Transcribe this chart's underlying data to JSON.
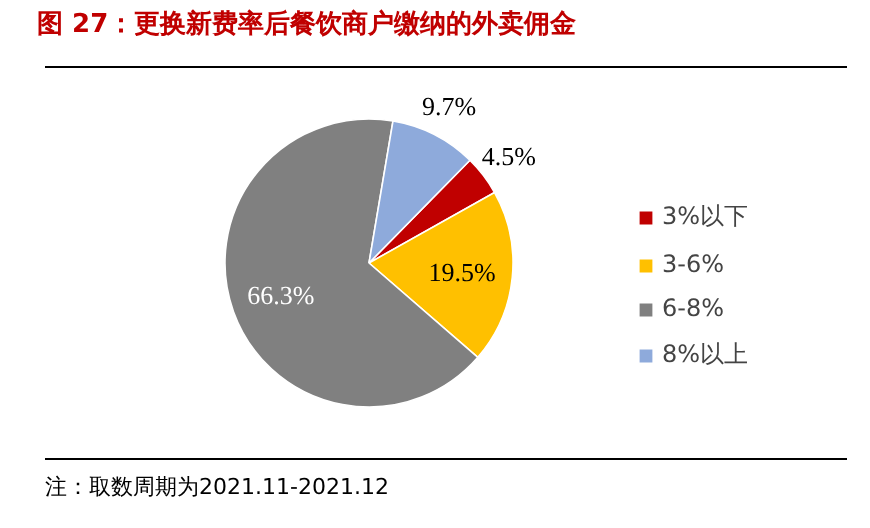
{
  "chart_data": {
    "type": "pie",
    "title": "图 27：更换新费率后餐饮商户缴纳的外卖佣金",
    "categories": [
      "3%以下",
      "3-6%",
      "6-8%",
      "8%以上"
    ],
    "values": [
      4.5,
      19.5,
      66.3,
      9.7
    ],
    "colors": [
      "#c00000",
      "#ffc000",
      "#808080",
      "#8eaadb"
    ],
    "value_labels": [
      "4.5%",
      "19.5%",
      "66.3%",
      "9.7%"
    ],
    "legend": "right",
    "annotations": [
      "注：取数周期为2021.11-2021.12"
    ]
  }
}
